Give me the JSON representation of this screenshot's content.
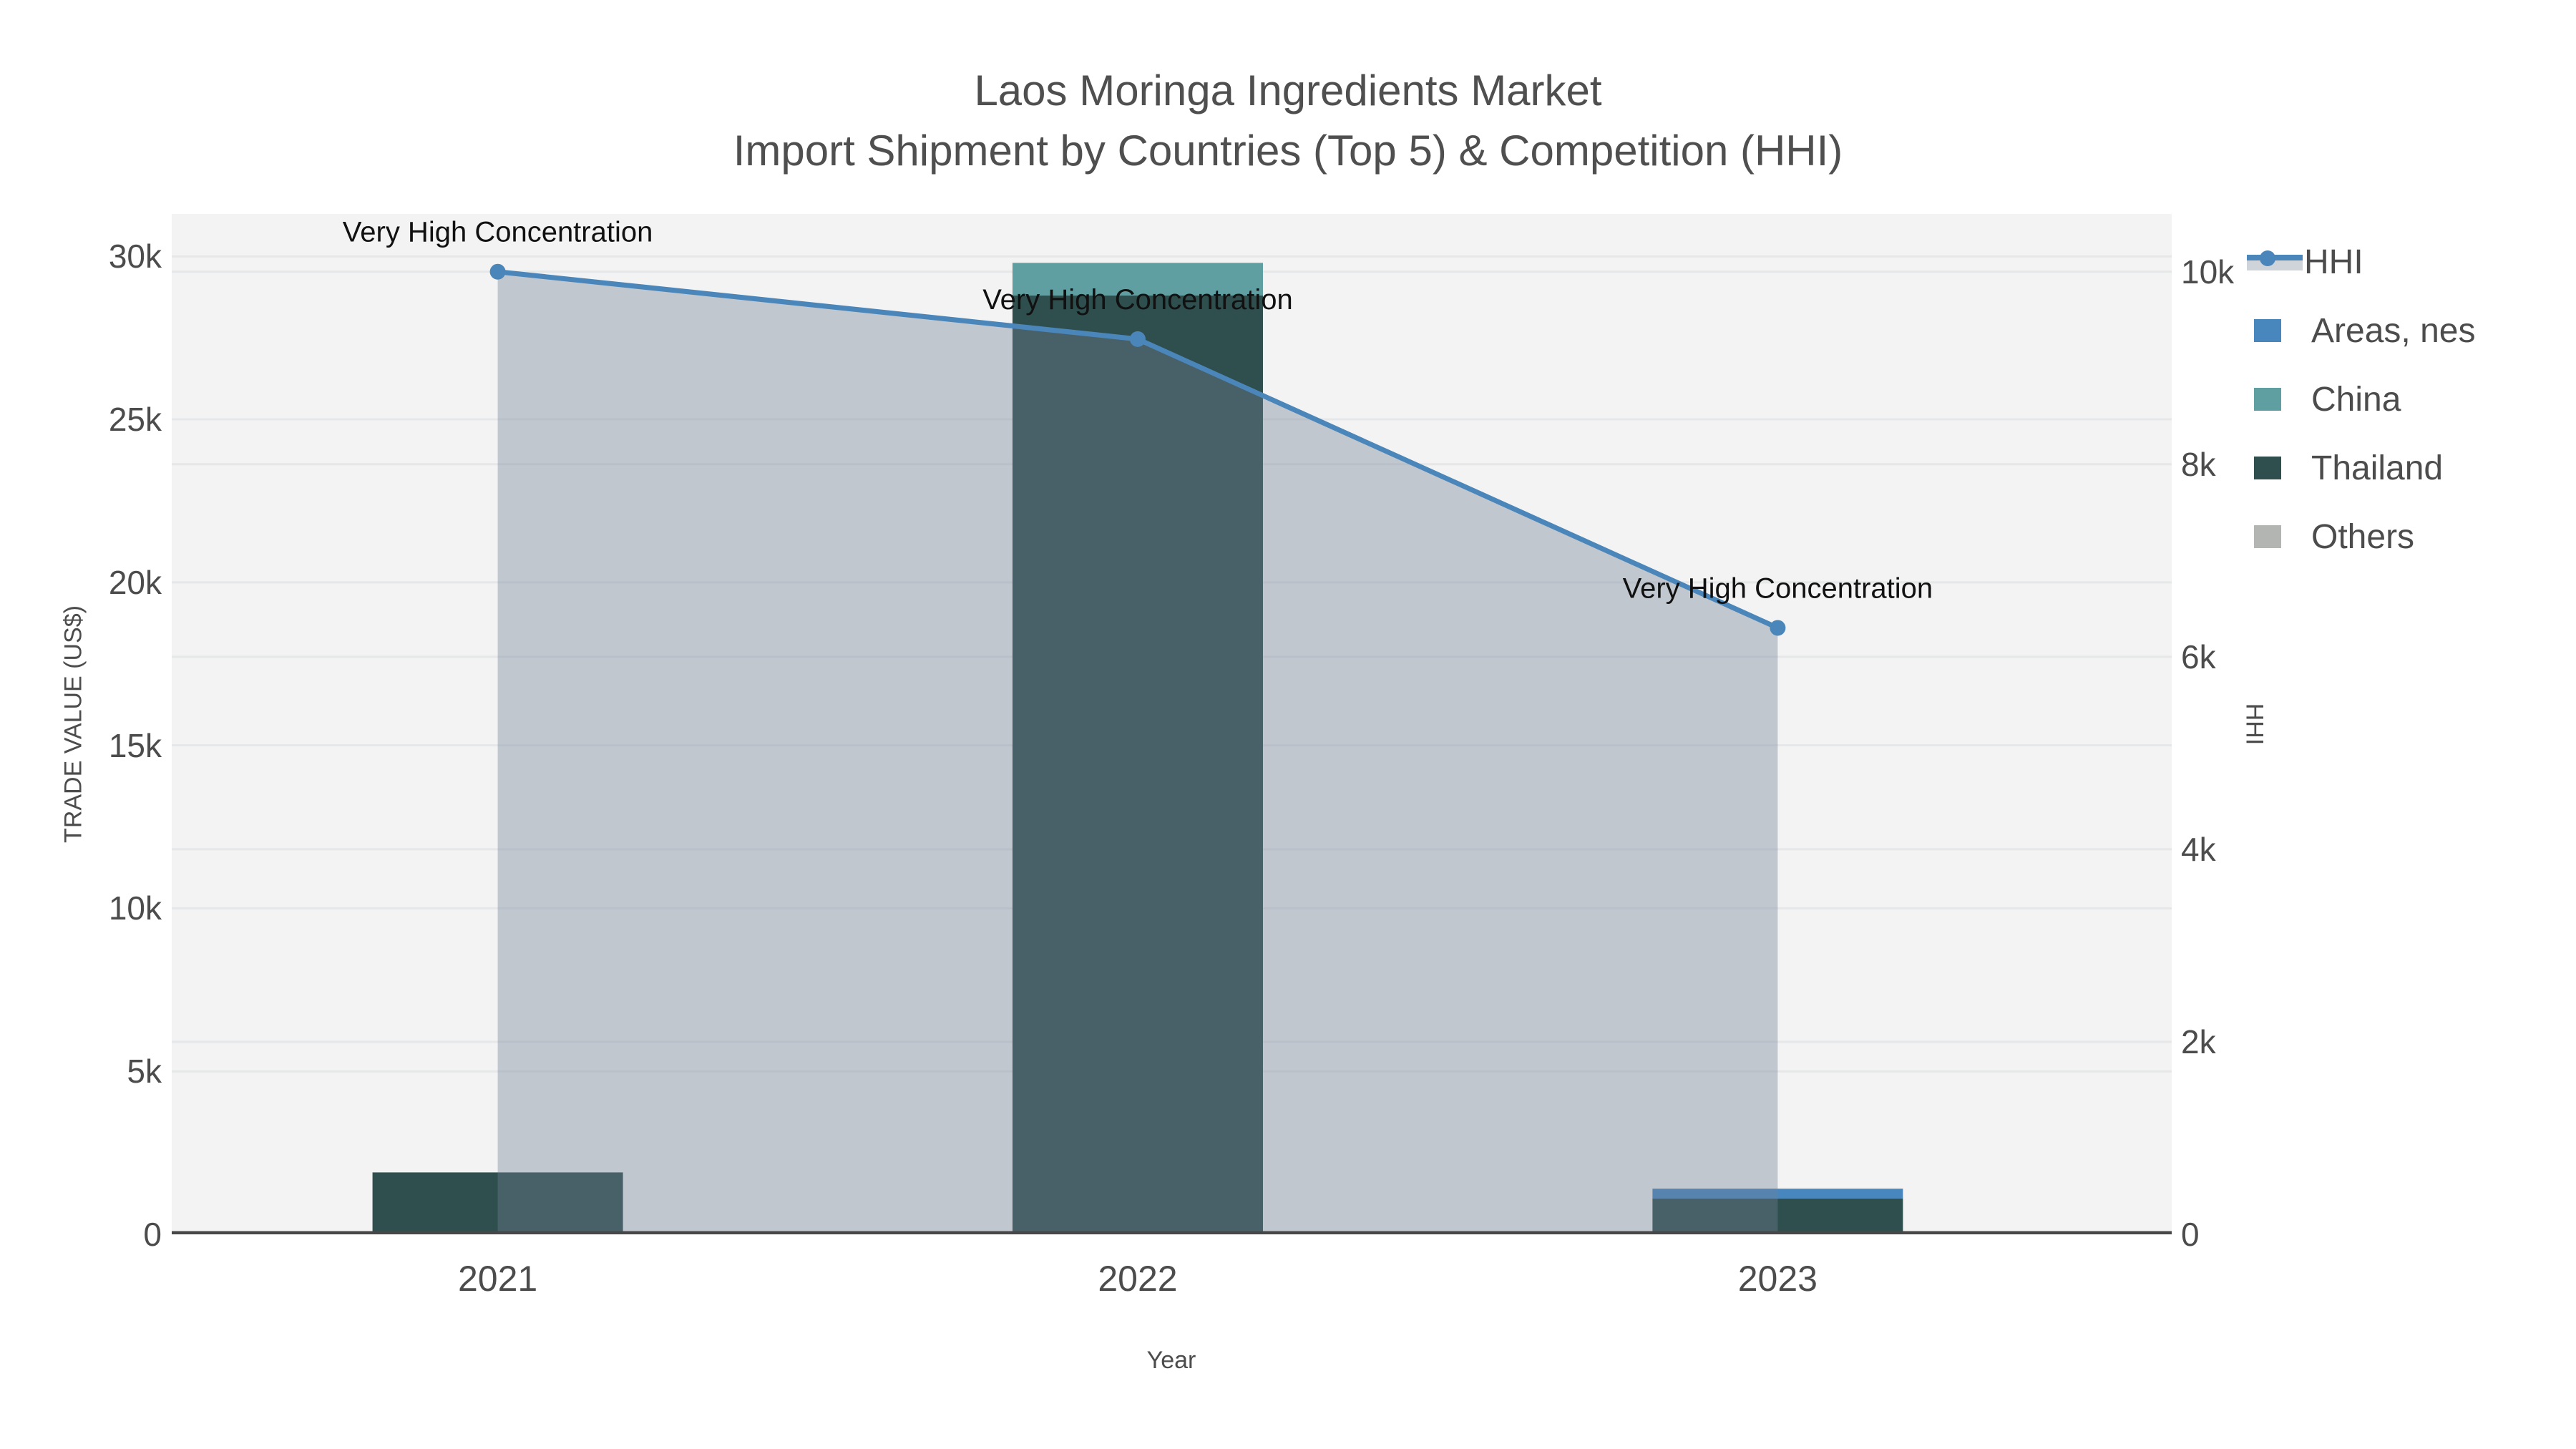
{
  "title": {
    "line1": "Laos Moringa Ingredients Market",
    "line2": "Import Shipment by Countries (Top 5) & Competition (HHI)"
  },
  "axes": {
    "left": {
      "title": "TRADE VALUE (US$)",
      "ticks": [
        {
          "label": "0",
          "value": 0
        },
        {
          "label": "5k",
          "value": 5000
        },
        {
          "label": "10k",
          "value": 10000
        },
        {
          "label": "15k",
          "value": 15000
        },
        {
          "label": "20k",
          "value": 20000
        },
        {
          "label": "25k",
          "value": 25000
        },
        {
          "label": "30k",
          "value": 30000
        }
      ]
    },
    "right": {
      "title": "HHI",
      "ticks": [
        {
          "label": "0",
          "value": 0
        },
        {
          "label": "2k",
          "value": 2000
        },
        {
          "label": "4k",
          "value": 4000
        },
        {
          "label": "6k",
          "value": 6000
        },
        {
          "label": "8k",
          "value": 8000
        },
        {
          "label": "10k",
          "value": 10000
        }
      ]
    },
    "x": {
      "title": "Year",
      "categories": [
        "2021",
        "2022",
        "2023"
      ],
      "center_fractions": [
        0.163,
        0.483,
        0.803
      ]
    }
  },
  "chart_data": {
    "type": "combo: stacked-bar + line-area (dual axis)",
    "title": "Laos Moringa Ingredients Market — Import Shipment by Countries (Top 5) & Competition (HHI)",
    "categories": [
      "2021",
      "2022",
      "2023"
    ],
    "bar_stack_order_bottom_to_top": [
      "Others",
      "Thailand",
      "China",
      "Areas, nes"
    ],
    "series": [
      {
        "name": "Areas, nes",
        "type": "bar",
        "axis": "left",
        "color": "#4787bd",
        "values": [
          0,
          0,
          300
        ]
      },
      {
        "name": "China",
        "type": "bar",
        "axis": "left",
        "color": "#5f9fa1",
        "values": [
          0,
          1000,
          0
        ]
      },
      {
        "name": "Thailand",
        "type": "bar",
        "axis": "left",
        "color": "#2f4e4e",
        "values": [
          1900,
          28800,
          1100
        ]
      },
      {
        "name": "Others",
        "type": "bar",
        "axis": "left",
        "color": "#b3b5b3",
        "values": [
          0,
          0,
          0
        ]
      },
      {
        "name": "HHI",
        "type": "line",
        "axis": "right",
        "color": "#4a86ba",
        "fill_color": "rgba(113,128,150,0.38)",
        "values": [
          10000,
          9300,
          6300
        ]
      }
    ],
    "annotations": [
      {
        "text": "Very High Concentration",
        "category": "2021",
        "value": 10000
      },
      {
        "text": "Very High Concentration",
        "category": "2022",
        "value": 9300
      },
      {
        "text": "Very High Concentration",
        "category": "2023",
        "value": 6300
      }
    ],
    "xlabel": "Year",
    "ylabel_left": "TRADE VALUE (US$)",
    "ylabel_right": "HHI",
    "ylim_left": [
      0,
      31300
    ],
    "ylim_right": [
      0,
      10600
    ],
    "grid": true,
    "legend_position": "right"
  },
  "legend": {
    "items": [
      {
        "label": "HHI",
        "type": "line-marker"
      },
      {
        "label": "Areas, nes",
        "type": "bar",
        "color": "#4787bd"
      },
      {
        "label": "China",
        "type": "bar",
        "color": "#5f9fa1"
      },
      {
        "label": "Thailand",
        "type": "bar",
        "color": "#2f4e4e"
      },
      {
        "label": "Others",
        "type": "bar",
        "color": "#b3b5b3"
      }
    ]
  },
  "colors": {
    "plot_bg": "#f3f3f3",
    "grid": "#e5e7e8",
    "axis_line": "#474747",
    "tick_text": "#4c4c4c",
    "annotation_text": "#111111",
    "hhi_line": "#4a86ba",
    "hhi_fill": "rgba(113,128,150,0.38)"
  }
}
